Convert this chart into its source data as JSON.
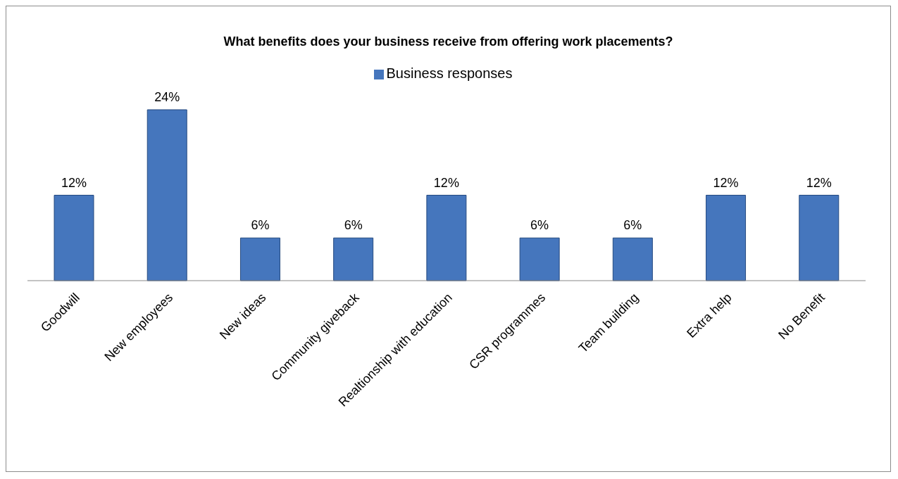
{
  "chart_data": {
    "type": "bar",
    "title": "What benefits does your business receive from offering work placements?",
    "categories": [
      "Goodwill",
      "New employees",
      "New ideas",
      "Community giveback",
      "Realtionship with education",
      "CSR programmes",
      "Team building",
      "Extra help",
      "No Benefit"
    ],
    "series": [
      {
        "name": "Business responses",
        "color": "#4576bd",
        "values": [
          12,
          24,
          6,
          6,
          12,
          6,
          6,
          12,
          12
        ],
        "value_labels": [
          "12%",
          "24%",
          "6%",
          "6%",
          "12%",
          "6%",
          "6%",
          "12%",
          "12%"
        ]
      }
    ],
    "legend": "top"
  }
}
